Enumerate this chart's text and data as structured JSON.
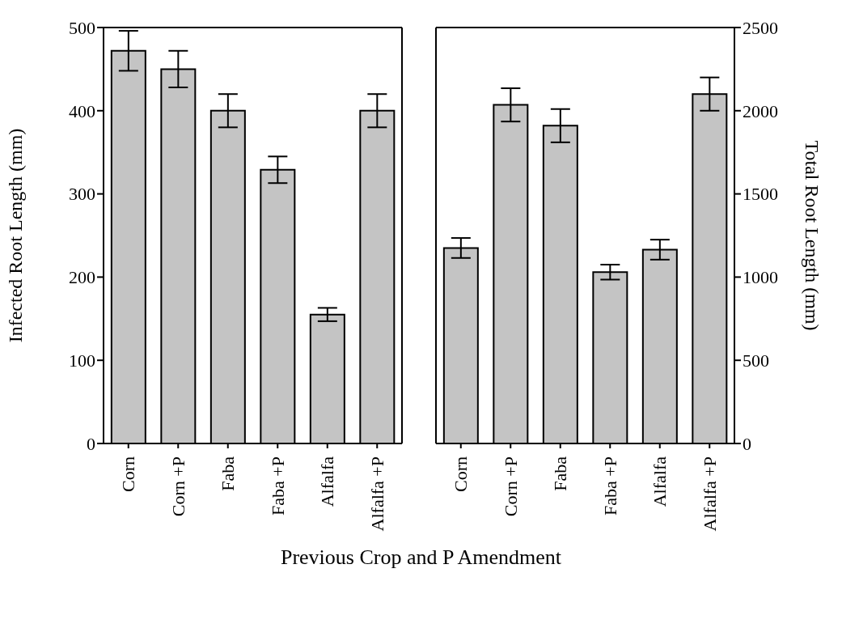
{
  "chart_data": [
    {
      "type": "bar",
      "ylabel": "Infected Root Length (mm)",
      "xlabel": "Previous Crop and P Amendment",
      "categories": [
        "Corn",
        "Corn +P",
        "Faba",
        "Faba +P",
        "Alfalfa",
        "Alfalfa +P"
      ],
      "series": [
        {
          "color": "#c4c4c4",
          "values": [
            472,
            450,
            400,
            329,
            155,
            400
          ],
          "errors": [
            24,
            22,
            20,
            16,
            8,
            20
          ]
        }
      ],
      "ylim": [
        0,
        500
      ],
      "yticks": [
        0,
        100,
        200,
        300,
        400,
        500
      ],
      "grid": false,
      "legend": false
    },
    {
      "type": "bar",
      "y2label": "Total Root Length (mm)",
      "categories": [
        "Corn",
        "Corn +P",
        "Faba",
        "Faba +P",
        "Alfalfa",
        "Alfalfa +P"
      ],
      "series": [
        {
          "color": "#c4c4c4",
          "axis": "y2",
          "values": [
            1175,
            2035,
            1910,
            1030,
            1165,
            2100
          ],
          "errors": [
            60,
            100,
            100,
            45,
            60,
            100
          ]
        }
      ],
      "y2lim": [
        0,
        2500
      ],
      "y2ticks": [
        0,
        500,
        1000,
        1500,
        2000,
        2500
      ],
      "grid": false,
      "legend": false
    }
  ]
}
